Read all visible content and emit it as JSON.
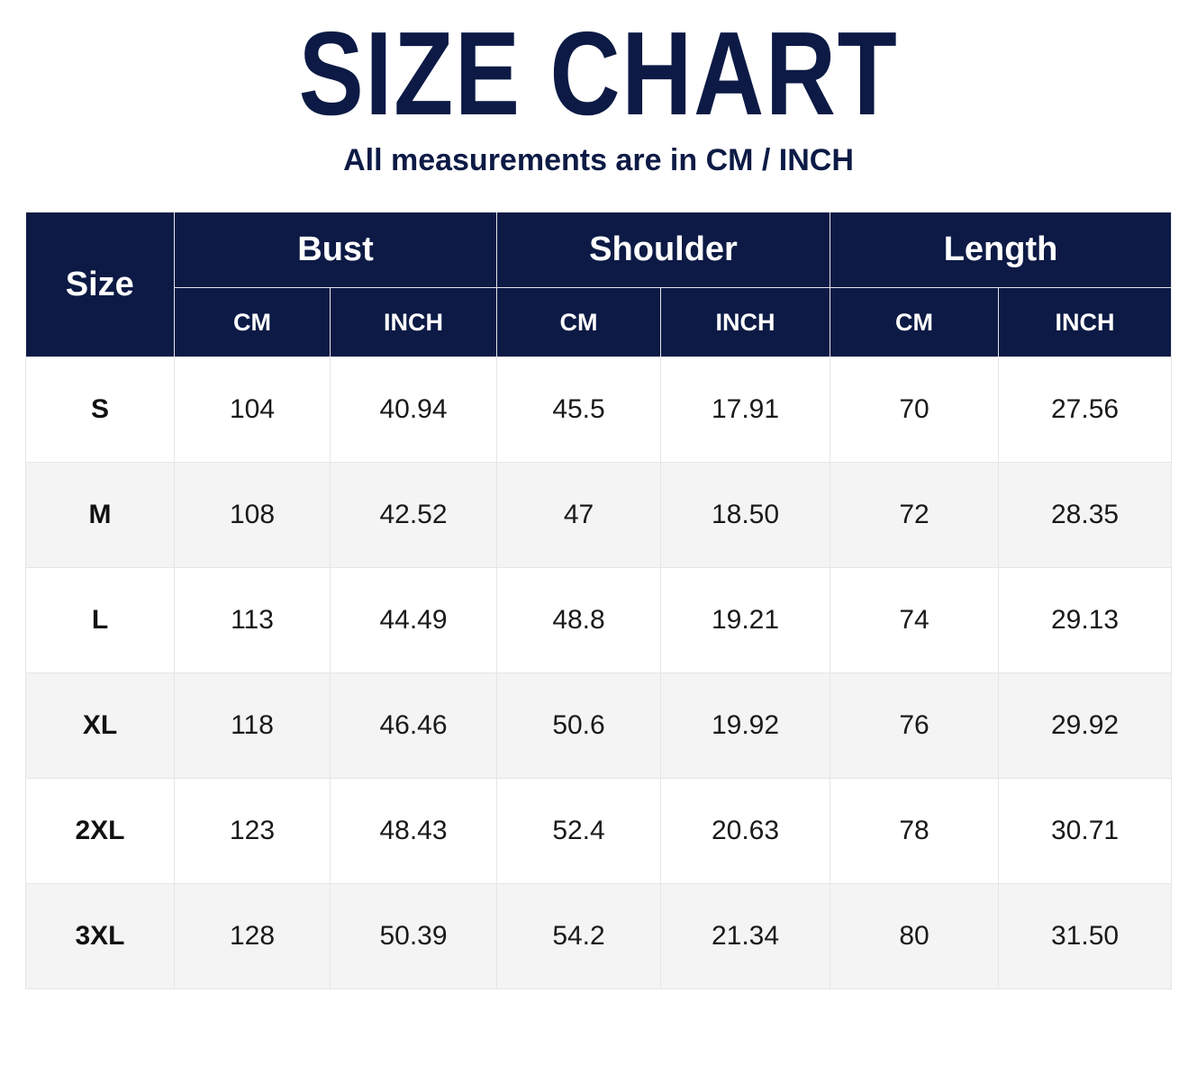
{
  "title": "SIZE CHART",
  "subtitle": "All measurements are in CM / INCH",
  "colors": {
    "header_bg": "#0c1a45",
    "header_text": "#ffffff",
    "title_text": "#0c1a45",
    "row_alt_bg": "#f4f4f4"
  },
  "chart_data": {
    "type": "table",
    "size_header": "Size",
    "groups": [
      "Bust",
      "Shoulder",
      "Length"
    ],
    "units": [
      "CM",
      "INCH"
    ],
    "rows": [
      {
        "size": "S",
        "bust_cm": "104",
        "bust_inch": "40.94",
        "shoulder_cm": "45.5",
        "shoulder_inch": "17.91",
        "length_cm": "70",
        "length_inch": "27.56"
      },
      {
        "size": "M",
        "bust_cm": "108",
        "bust_inch": "42.52",
        "shoulder_cm": "47",
        "shoulder_inch": "18.50",
        "length_cm": "72",
        "length_inch": "28.35"
      },
      {
        "size": "L",
        "bust_cm": "113",
        "bust_inch": "44.49",
        "shoulder_cm": "48.8",
        "shoulder_inch": "19.21",
        "length_cm": "74",
        "length_inch": "29.13"
      },
      {
        "size": "XL",
        "bust_cm": "118",
        "bust_inch": "46.46",
        "shoulder_cm": "50.6",
        "shoulder_inch": "19.92",
        "length_cm": "76",
        "length_inch": "29.92"
      },
      {
        "size": "2XL",
        "bust_cm": "123",
        "bust_inch": "48.43",
        "shoulder_cm": "52.4",
        "shoulder_inch": "20.63",
        "length_cm": "78",
        "length_inch": "30.71"
      },
      {
        "size": "3XL",
        "bust_cm": "128",
        "bust_inch": "50.39",
        "shoulder_cm": "54.2",
        "shoulder_inch": "21.34",
        "length_cm": "80",
        "length_inch": "31.50"
      }
    ]
  }
}
